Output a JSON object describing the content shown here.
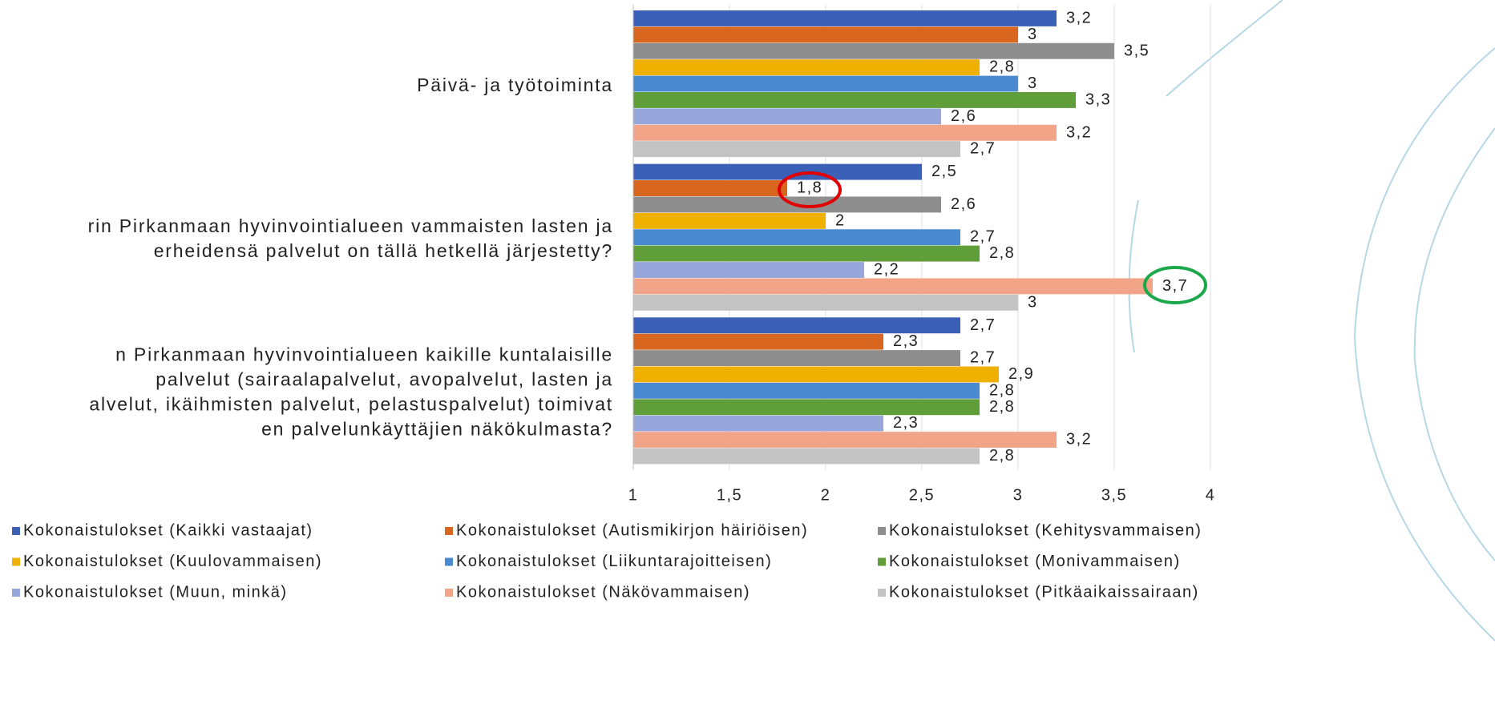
{
  "chart_data": {
    "type": "bar",
    "orientation": "horizontal",
    "categories": [
      "Päivä- ja työtoiminta",
      "rin Pirkanmaan hyvinvointialueen vammaisten lasten ja\nerheidensä palvelut on tällä hetkellä järjestetty?",
      "n Pirkanmaan hyvinvointialueen kaikille kuntalaisille\n palvelut (sairaalapalvelut, avopalvelut, lasten ja\nalvelut, ikäihmisten palvelut, pelastuspalvelut) toimivat\nen palvelunkäyttäjien näkökulmasta?"
    ],
    "series": [
      {
        "name": "Kokonaistulokset (Kaikki vastaajat)",
        "color": "#3a60b8",
        "values": [
          3.2,
          2.5,
          2.7
        ],
        "value_labels": [
          "3,2",
          "2,5",
          "2,7"
        ]
      },
      {
        "name": "Kokonaistulokset (Autismikirjon häiriöisen)",
        "color": "#d8661e",
        "values": [
          3,
          1.8,
          2.3
        ],
        "value_labels": [
          "3",
          "1,8",
          "2,3"
        ]
      },
      {
        "name": "Kokonaistulokset (Kehitysvammaisen)",
        "color": "#8e8e8e",
        "values": [
          3.5,
          2.6,
          2.7
        ],
        "value_labels": [
          "3,5",
          "2,6",
          "2,7"
        ]
      },
      {
        "name": "Kokonaistulokset (Kuulovammaisen)",
        "color": "#efb000",
        "values": [
          2.8,
          2,
          2.9
        ],
        "value_labels": [
          "2,8",
          "2",
          "2,9"
        ]
      },
      {
        "name": "Kokonaistulokset (Liikuntarajoitteisen)",
        "color": "#4a8ad0",
        "values": [
          3,
          2.7,
          2.8
        ],
        "value_labels": [
          "3",
          "2,7",
          "2,8"
        ]
      },
      {
        "name": "Kokonaistulokset (Monivammaisen)",
        "color": "#5f9e38",
        "values": [
          3.3,
          2.8,
          2.8
        ],
        "value_labels": [
          "3,3",
          "2,8",
          "2,8"
        ]
      },
      {
        "name": "Kokonaistulokset (Muun, minkä)",
        "color": "#97a7dc",
        "values": [
          2.6,
          2.2,
          2.3
        ],
        "value_labels": [
          "2,6",
          "2,2",
          "2,3"
        ]
      },
      {
        "name": "Kokonaistulokset (Näkövammaisen)",
        "color": "#f2a489",
        "values": [
          3.2,
          3.7,
          3.2
        ],
        "value_labels": [
          "3,2",
          "3,7",
          "3,2"
        ]
      },
      {
        "name": "Kokonaistulokset (Pitkäaikaissairaan)",
        "color": "#c3c3c3",
        "values": [
          2.7,
          3,
          2.8
        ],
        "value_labels": [
          "2,7",
          "3",
          "2,8"
        ]
      }
    ],
    "xlim": [
      1,
      4
    ],
    "xticks": [
      1,
      {
        "value": 1.5,
        "label": "1,5"
      },
      2,
      {
        "value": 2.5,
        "label": "2,5"
      },
      3,
      {
        "value": 3.5,
        "label": "3,5"
      },
      4
    ],
    "grid": true
  }
}
